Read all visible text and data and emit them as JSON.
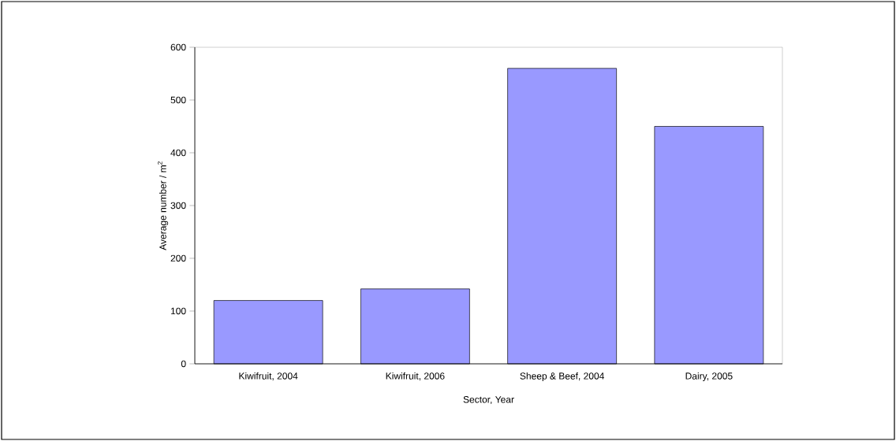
{
  "chart_data": {
    "type": "bar",
    "xlabel": "Sector, Year",
    "ylabel": "Average number / m$^{2}$",
    "categories": [
      "Kiwifruit, 2004",
      "Kiwifruit, 2006",
      "Sheep & Beef, 2004",
      "Dairy, 2005"
    ],
    "values": [
      120,
      142,
      560,
      450
    ],
    "color": "#9999ff",
    "ylim": [
      0,
      600
    ],
    "yticks": [
      0,
      100,
      200,
      300,
      400,
      500,
      600
    ],
    "grid": false
  }
}
